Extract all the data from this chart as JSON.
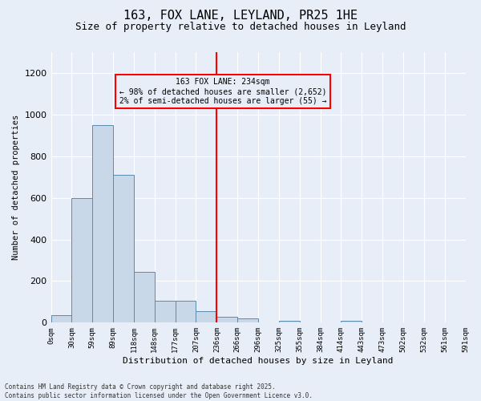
{
  "title_line1": "163, FOX LANE, LEYLAND, PR25 1HE",
  "title_line2": "Size of property relative to detached houses in Leyland",
  "xlabel": "Distribution of detached houses by size in Leyland",
  "ylabel": "Number of detached properties",
  "bar_values": [
    35,
    600,
    950,
    710,
    245,
    105,
    105,
    55,
    30,
    20,
    0,
    10,
    0,
    0,
    10,
    0,
    0,
    0,
    0,
    0
  ],
  "x_labels": [
    "0sqm",
    "30sqm",
    "59sqm",
    "89sqm",
    "118sqm",
    "148sqm",
    "177sqm",
    "207sqm",
    "236sqm",
    "266sqm",
    "296sqm",
    "325sqm",
    "355sqm",
    "384sqm",
    "414sqm",
    "443sqm",
    "473sqm",
    "502sqm",
    "532sqm",
    "561sqm",
    "591sqm"
  ],
  "bar_color": "#c8d8e8",
  "bar_edge_color": "#5a8ab0",
  "background_color": "#e8eef8",
  "grid_color": "#ffffff",
  "vline_x_index": 8,
  "vline_color": "red",
  "annotation_text": "163 FOX LANE: 234sqm\n← 98% of detached houses are smaller (2,652)\n2% of semi-detached houses are larger (55) →",
  "annotation_box_color": "red",
  "ylim": [
    0,
    1300
  ],
  "yticks": [
    0,
    200,
    400,
    600,
    800,
    1000,
    1200
  ],
  "footnote": "Contains HM Land Registry data © Crown copyright and database right 2025.\nContains public sector information licensed under the Open Government Licence v3.0.",
  "title_fontsize": 11,
  "subtitle_fontsize": 9
}
